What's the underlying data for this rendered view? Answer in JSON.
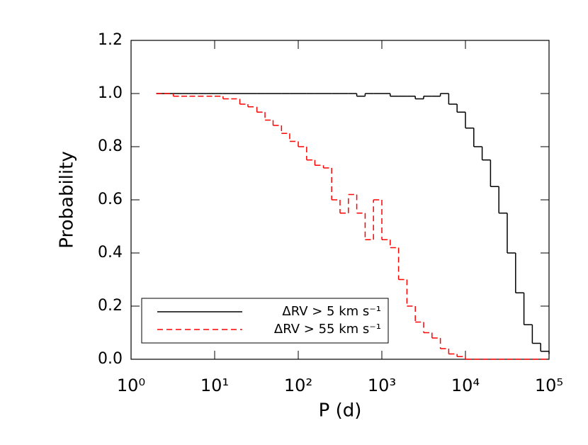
{
  "chart_data": {
    "type": "step",
    "xlabel": "P (d)",
    "ylabel": "Probability",
    "xscale": "log",
    "xlim": [
      1,
      100000
    ],
    "xticks": [
      {
        "value": 1,
        "label": "10⁰"
      },
      {
        "value": 10,
        "label": "10¹"
      },
      {
        "value": 100,
        "label": "10²"
      },
      {
        "value": 1000,
        "label": "10³"
      },
      {
        "value": 10000,
        "label": "10⁴"
      },
      {
        "value": 100000,
        "label": "10⁵"
      }
    ],
    "ylim": [
      0,
      1.2
    ],
    "yticks": [
      {
        "value": 0,
        "label": "0.0"
      },
      {
        "value": 0.2,
        "label": "0.2"
      },
      {
        "value": 0.4,
        "label": "0.4"
      },
      {
        "value": 0.6,
        "label": "0.6"
      },
      {
        "value": 0.8,
        "label": "0.8"
      },
      {
        "value": 1,
        "label": "1.0"
      },
      {
        "value": 1.2,
        "label": "1.2"
      }
    ],
    "legend": "lower left",
    "x": [
      2,
      2.5,
      3.2,
      4,
      5,
      6.3,
      8,
      10,
      12.6,
      15.8,
      20,
      25,
      32,
      40,
      50,
      63,
      79,
      100,
      126,
      158,
      200,
      251,
      316,
      398,
      501,
      631,
      794,
      1000,
      1259,
      1585,
      1995,
      2512,
      3162,
      3981,
      5012,
      6310,
      7943,
      10000,
      12589,
      15849,
      19953,
      25119,
      31623,
      39811,
      50119,
      63096,
      79433,
      100000
    ],
    "series": [
      {
        "name": "ΔRV > 5 km s⁻¹",
        "color": "#000000",
        "dash": "solid",
        "values": [
          1,
          1,
          1,
          1,
          1,
          1,
          1,
          1,
          1,
          1,
          1,
          1,
          1,
          1,
          1,
          1,
          1,
          1,
          1,
          1,
          1,
          1,
          1,
          1,
          0.99,
          1,
          1,
          1,
          0.99,
          0.99,
          0.99,
          0.98,
          0.99,
          0.99,
          1,
          0.96,
          0.93,
          0.87,
          0.8,
          0.75,
          0.65,
          0.55,
          0.4,
          0.25,
          0.13,
          0.06,
          0.03,
          0.02
        ]
      },
      {
        "name": "ΔRV > 55 km s⁻¹",
        "color": "#ff0000",
        "dash": "dashed",
        "values": [
          1,
          1,
          0.99,
          0.99,
          0.99,
          0.99,
          0.99,
          0.99,
          0.98,
          0.98,
          0.96,
          0.95,
          0.93,
          0.9,
          0.88,
          0.85,
          0.82,
          0.8,
          0.75,
          0.73,
          0.72,
          0.6,
          0.55,
          0.62,
          0.55,
          0.45,
          0.6,
          0.45,
          0.42,
          0.3,
          0.2,
          0.14,
          0.1,
          0.08,
          0.04,
          0.02,
          0.01,
          0,
          0,
          0,
          0,
          0,
          0,
          0,
          0,
          0,
          0,
          0
        ]
      }
    ]
  }
}
